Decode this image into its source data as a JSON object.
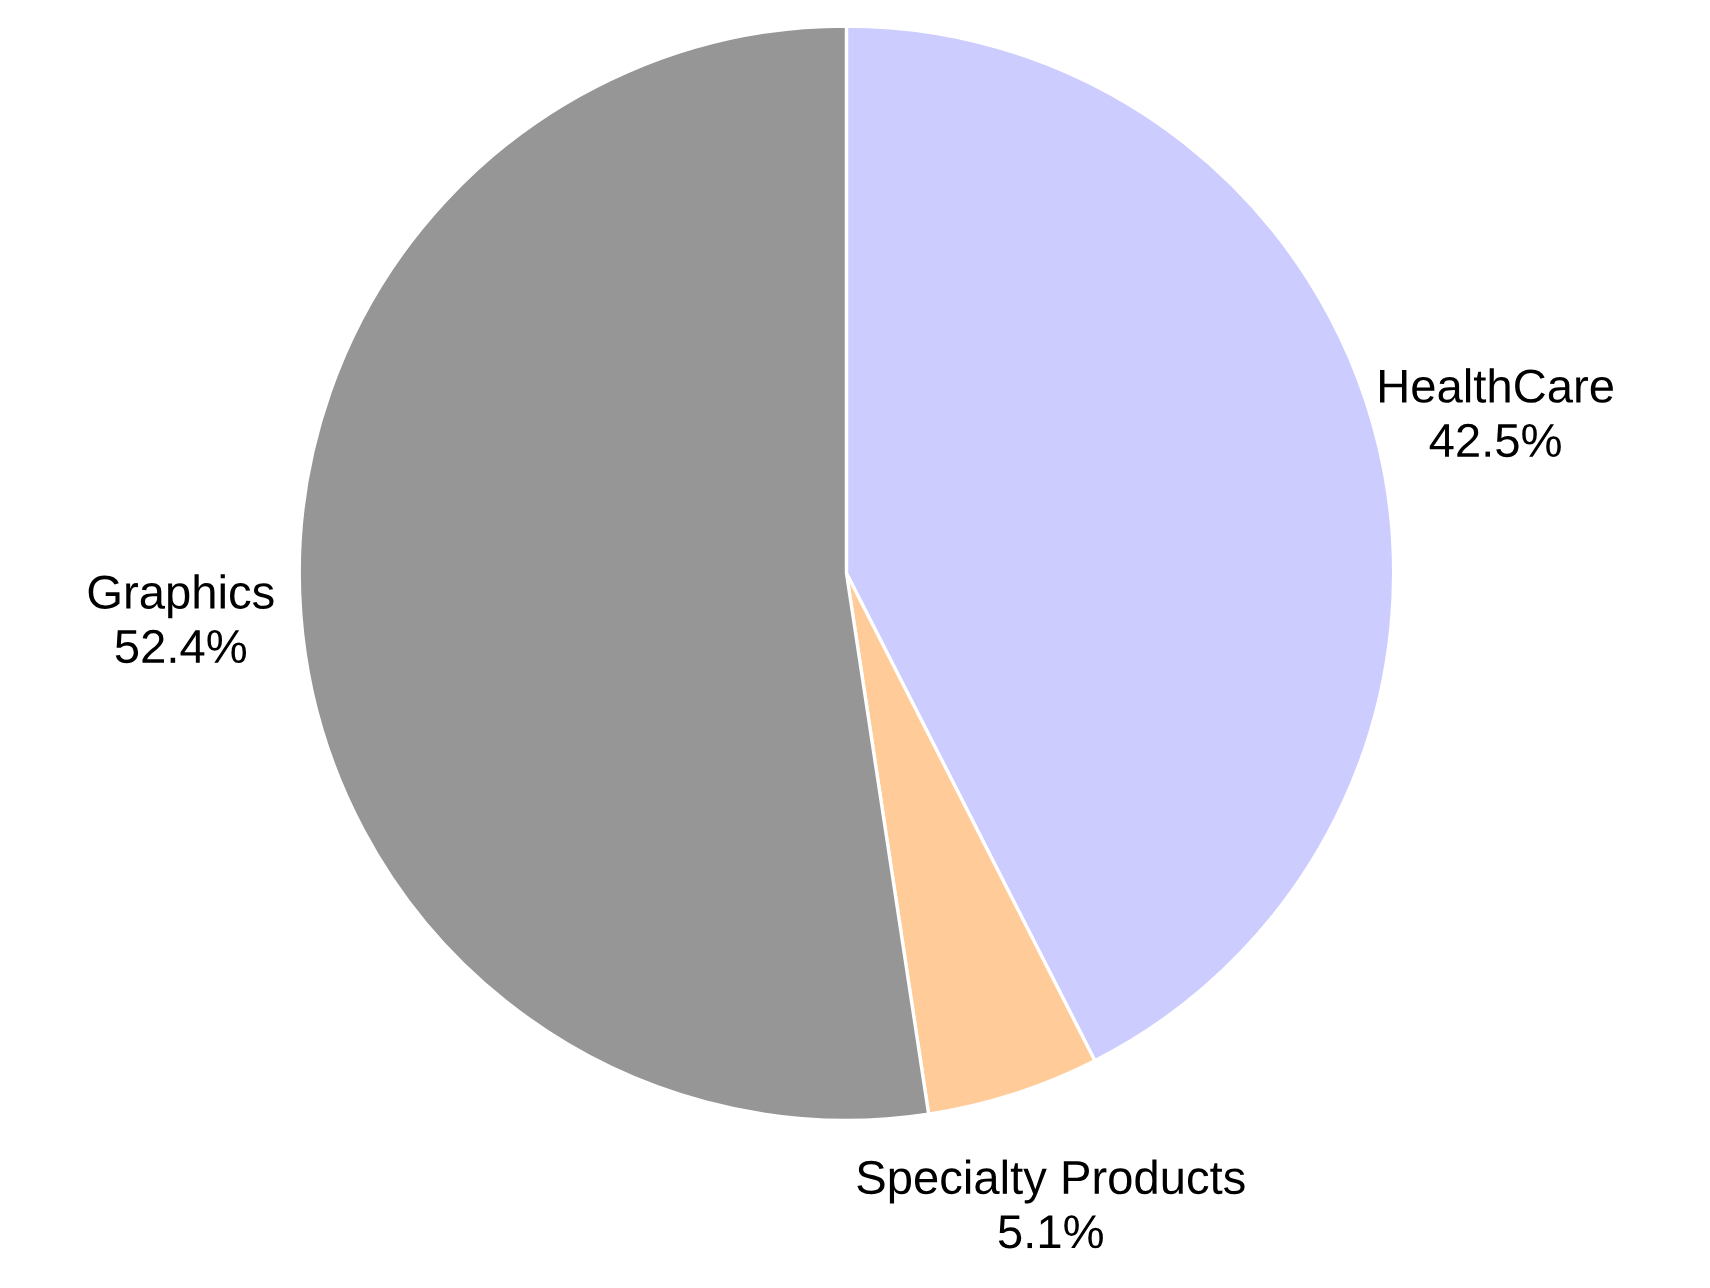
{
  "chart_data": {
    "type": "pie",
    "categories": [
      "HealthCare",
      "Specialty Products",
      "Graphics"
    ],
    "values": [
      42.5,
      5.1,
      52.4
    ],
    "colors": [
      "#ccccff",
      "#ffcc99",
      "#969696"
    ],
    "value_labels": [
      "42.5%",
      "5.1%",
      "52.4%"
    ]
  }
}
